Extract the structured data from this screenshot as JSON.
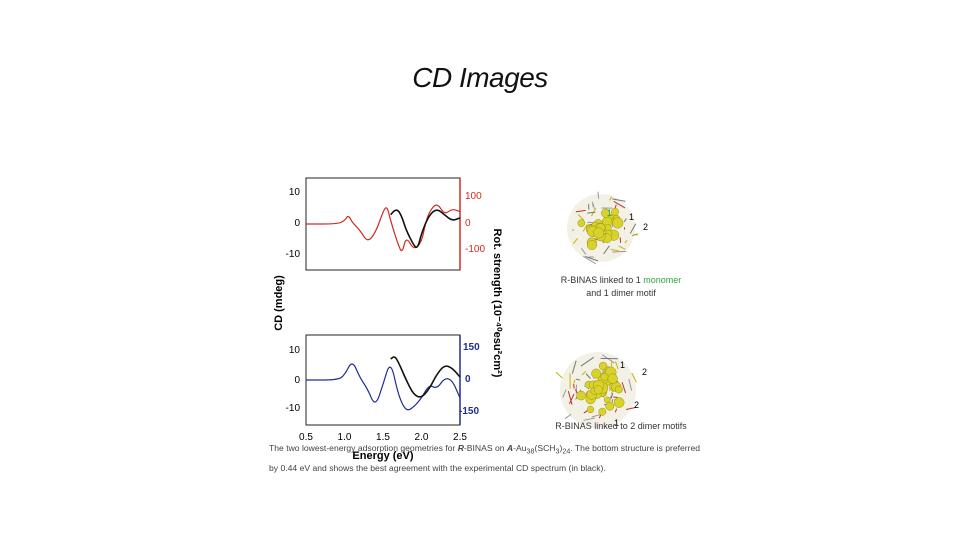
{
  "slide": {
    "title": "CD Images"
  },
  "figure": {
    "left_ylabel": "CD (mdeg)",
    "right_ylabel": "Rot. strength (10⁻⁴⁰esu²cm²)",
    "xlabel": "Energy (eV)",
    "x_ticks": [
      "0.5",
      "1.0",
      "1.5",
      "2.0",
      "2.5"
    ],
    "top_left_ticks": [
      "10",
      "0",
      "-10"
    ],
    "top_right_ticks": [
      "100",
      "0",
      "-100"
    ],
    "bottom_left_ticks": [
      "10",
      "0",
      "-10"
    ],
    "bottom_right_ticks": [
      "150",
      "0",
      "-150"
    ],
    "colors": {
      "experimental": "#111111",
      "top_calc": "#d22a1f",
      "bottom_calc": "#1f2e8f",
      "green": "#2aa63a"
    }
  },
  "molecules": {
    "top": {
      "label_part1": "R-BINAS linked to 1 ",
      "label_green": "monomer",
      "label_part2": "and 1 dimer motif",
      "markers": [
        "1",
        "1",
        "2"
      ]
    },
    "bottom": {
      "label": "R-BINAS linked to 2 dimer motifs",
      "markers": [
        "1",
        "2",
        "2",
        "1"
      ]
    }
  },
  "caption": {
    "text1": "The two lowest-energy adsorption geometries for ",
    "r": "R",
    "text2": "-BINAS on ",
    "a": "A",
    "text3": "-Au",
    "sub1": "38",
    "text4": "(SCH",
    "sub2": "3",
    "text5": ")",
    "sub3": "24",
    "text6": ". The bottom structure is preferred by 0.44 eV and shows the best agreement with the experimental CD spectrum (in black)."
  },
  "chart_data": [
    {
      "type": "line",
      "title": "",
      "xlabel": "Energy (eV)",
      "ylabel": "CD (mdeg)",
      "xlim": [
        0.5,
        2.5
      ],
      "ylim": [
        -15,
        15
      ],
      "y2lim": [
        -150,
        150
      ],
      "series": [
        {
          "color": "#d22a1f",
          "axis": "right",
          "x": [
            0.5,
            0.9,
            1.0,
            1.05,
            1.1,
            1.2,
            1.3,
            1.4,
            1.5,
            1.55,
            1.6,
            1.7,
            1.75,
            1.8,
            1.9,
            2.0,
            2.05,
            2.1,
            2.2,
            2.3,
            2.4,
            2.5
          ],
          "y": [
            0,
            0,
            10,
            30,
            5,
            -20,
            -60,
            -30,
            40,
            60,
            10,
            -70,
            -95,
            -40,
            -85,
            -60,
            0,
            40,
            70,
            30,
            50,
            40
          ]
        },
        {
          "color": "#111111",
          "axis": "left",
          "x": [
            1.6,
            1.65,
            1.7,
            1.75,
            1.8,
            1.9,
            1.95,
            2.0,
            2.1,
            2.2,
            2.3,
            2.4,
            2.5
          ],
          "y": [
            3,
            4.5,
            4.5,
            2,
            -2,
            -7,
            -8,
            -3,
            3,
            5,
            3,
            1,
            2
          ]
        }
      ]
    },
    {
      "type": "line",
      "title": "",
      "xlabel": "Energy (eV)",
      "ylabel": "CD (mdeg)",
      "xlim": [
        0.5,
        2.5
      ],
      "ylim": [
        -15,
        15
      ],
      "y2lim": [
        -200,
        200
      ],
      "series": [
        {
          "color": "#1f2e8f",
          "axis": "right",
          "x": [
            0.5,
            0.9,
            1.0,
            1.1,
            1.2,
            1.3,
            1.4,
            1.5,
            1.6,
            1.7,
            1.8,
            1.9,
            2.0,
            2.1,
            2.2,
            2.3,
            2.4,
            2.5
          ],
          "y": [
            0,
            0,
            20,
            90,
            10,
            -40,
            -120,
            -20,
            90,
            -70,
            -140,
            -120,
            -80,
            -20,
            -40,
            10,
            0,
            -80
          ]
        },
        {
          "color": "#111111",
          "axis": "left",
          "x": [
            1.6,
            1.65,
            1.7,
            1.8,
            1.9,
            2.0,
            2.1,
            2.2,
            2.3,
            2.4,
            2.5
          ],
          "y": [
            7,
            8,
            6,
            0,
            -5,
            -6,
            -3,
            2,
            5,
            4,
            1
          ]
        }
      ]
    }
  ]
}
